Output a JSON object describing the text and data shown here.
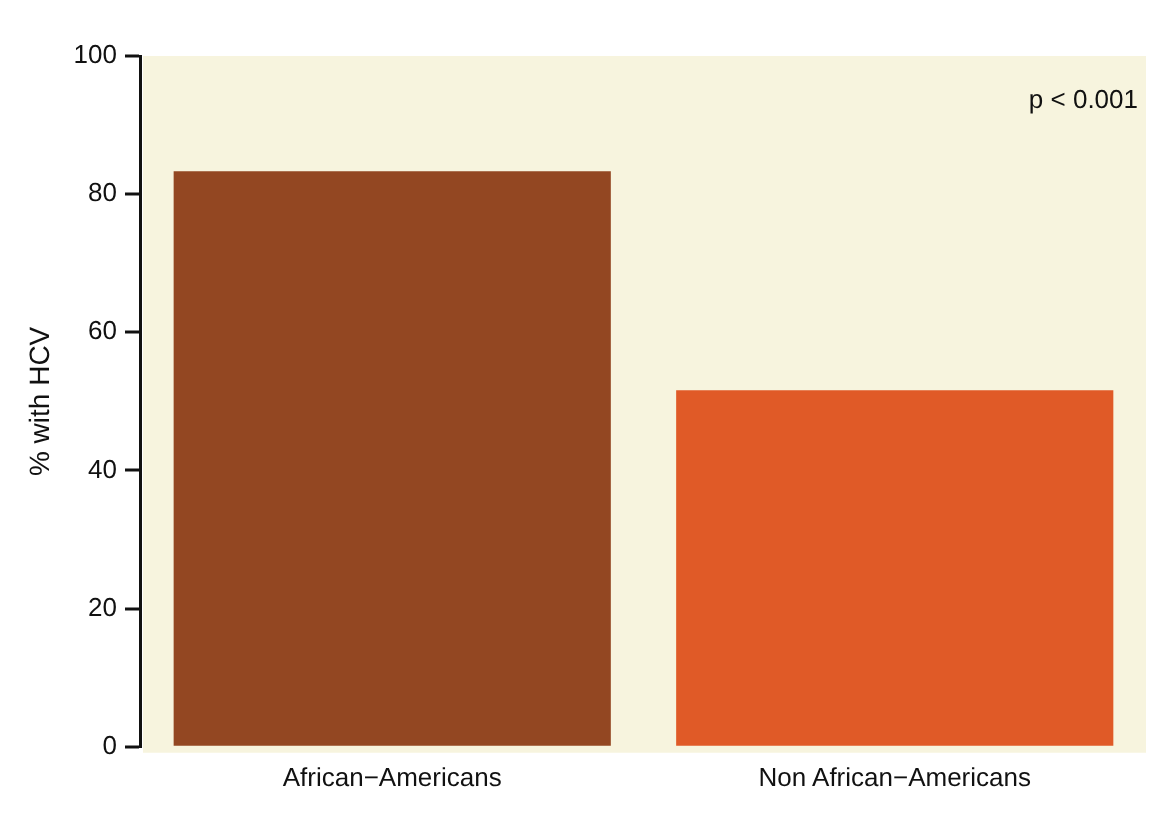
{
  "chart_data": {
    "type": "bar",
    "ylabel": "% with HCV",
    "categories": [
      "African−Americans",
      "Non African−Americans"
    ],
    "values": [
      83.3,
      51.6
    ],
    "colors": [
      "#934722",
      "#e05a27"
    ],
    "ylim": [
      0,
      100
    ],
    "yticks": [
      0,
      20,
      40,
      60,
      80,
      100
    ],
    "grid": false,
    "legend": false,
    "annotations": [
      "p < 0.001"
    ]
  }
}
